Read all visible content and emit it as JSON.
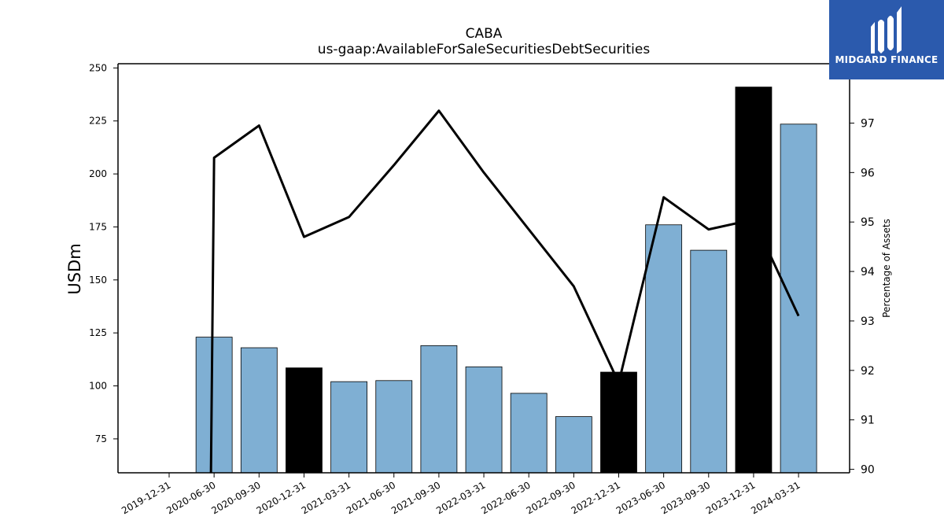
{
  "chart_data": {
    "type": "bar",
    "title": "CABA",
    "subtitle": "us-gaap:AvailableForSaleSecuritiesDebtSecurities",
    "ylabel": "USDm",
    "y2label": "Percentage of Assets",
    "categories": [
      "2019-12-31",
      "2020-06-30",
      "2020-09-30",
      "2020-12-31",
      "2021-03-31",
      "2021-06-30",
      "2021-09-30",
      "2022-03-31",
      "2022-06-30",
      "2022-09-30",
      "2022-12-31",
      "2023-06-30",
      "2023-09-30",
      "2023-12-31",
      "2024-03-31"
    ],
    "ylim": [
      59,
      252
    ],
    "y2lim": [
      89.93,
      98.2
    ],
    "yticks": [
      75,
      100,
      125,
      150,
      175,
      200,
      225,
      250
    ],
    "y2ticks": [
      90,
      91,
      92,
      93,
      94,
      95,
      96,
      97
    ],
    "series": [
      {
        "kind": "bar",
        "values": [
          null,
          123,
          118,
          108.5,
          102,
          102.5,
          119,
          109,
          96.5,
          85.5,
          106.5,
          176,
          164,
          241,
          223.5
        ],
        "highlight": [
          false,
          false,
          false,
          true,
          false,
          false,
          false,
          false,
          false,
          false,
          true,
          false,
          false,
          true,
          false
        ]
      },
      {
        "kind": "line",
        "axis": "right",
        "values": [
          null,
          96.3,
          96.95,
          94.7,
          95.1,
          96.15,
          97.25,
          96.0,
          94.85,
          93.7,
          91.75,
          95.5,
          94.85,
          95.05,
          93.1
        ]
      }
    ],
    "colors": {
      "bar": "#7fafd3",
      "bar_highlight": "#000000",
      "line": "#000000"
    },
    "grid": false,
    "legend": "none"
  },
  "logo": {
    "text": "MIDGARD FINANCE"
  }
}
